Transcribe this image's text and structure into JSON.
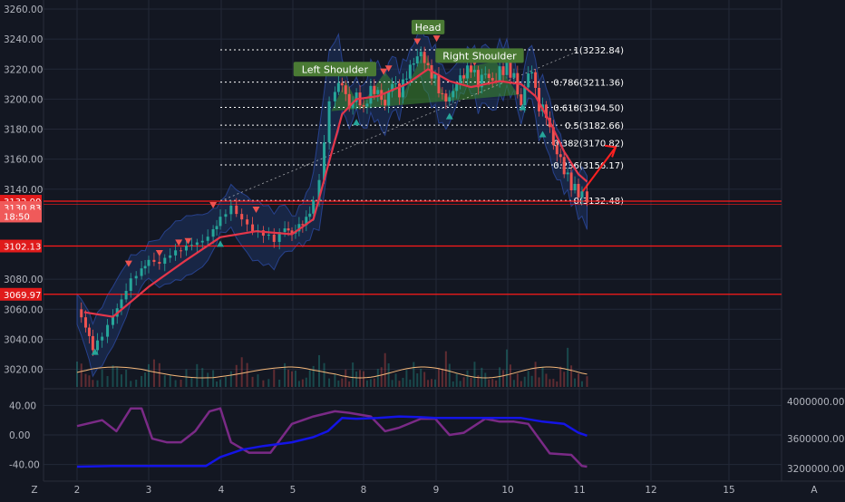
{
  "colors": {
    "background": "#131722",
    "grid": "#232838",
    "bull": "#26a69a",
    "bear": "#ef5350",
    "red_line": "#ff1a1a",
    "wma": "#e5364a",
    "band_fill": "#1e3a72",
    "pattern_fill": "#3c8a2e",
    "osc_purple": "#7a2a86",
    "osc_blue": "#1414e6",
    "volume_ma": "#f5b87a"
  },
  "chart_data": [
    {
      "type": "candlestick",
      "x_ticks": [
        "2",
        "3",
        "4",
        "5",
        "8",
        "9",
        "10",
        "11",
        "12",
        "15"
      ],
      "ylim": [
        3010,
        3265
      ],
      "y_ticks": [
        "3260.00",
        "3240.00",
        "3220.00",
        "3200.00",
        "3180.00",
        "3160.00",
        "3140.00",
        "3080.00",
        "3060.00",
        "3040.00",
        "3020.00"
      ],
      "price_labels": [
        {
          "text": "3132.00",
          "value": 3132.0
        },
        {
          "text": "3130.83",
          "value": 3130.83
        },
        {
          "text": "18:50",
          "value": 3124.5
        },
        {
          "text": "3102.13",
          "value": 3102.13
        },
        {
          "text": "3069.97",
          "value": 3069.97
        }
      ],
      "horizontal_levels": [
        3132.0,
        3102.13,
        3069.97
      ],
      "fibonacci": [
        {
          "label": "1(3232.84)",
          "value": 3232.84
        },
        {
          "label": "0.786(3211.36)",
          "value": 3211.36
        },
        {
          "label": "0.618(3194.50)",
          "value": 3194.5
        },
        {
          "label": "0.5(3182.66)",
          "value": 3182.66
        },
        {
          "label": "0.382(3170.82)",
          "value": 3170.82
        },
        {
          "label": "0.236(3156.17)",
          "value": 3156.17
        },
        {
          "label": "0(3132.48)",
          "value": 3132.48
        }
      ],
      "pattern_labels": [
        "Left Shoulder",
        "Head",
        "Right Shoulder"
      ],
      "price_path": [
        [
          0.0,
          3058
        ],
        [
          0.12,
          3048
        ],
        [
          0.22,
          3035
        ],
        [
          0.35,
          3045
        ],
        [
          0.5,
          3058
        ],
        [
          0.62,
          3068
        ],
        [
          0.75,
          3080
        ],
        [
          0.9,
          3085
        ],
        [
          1.0,
          3090
        ],
        [
          1.15,
          3088
        ],
        [
          1.3,
          3095
        ],
        [
          1.45,
          3100
        ],
        [
          1.6,
          3105
        ],
        [
          1.75,
          3108
        ],
        [
          1.9,
          3115
        ],
        [
          2.0,
          3122
        ],
        [
          2.15,
          3128
        ],
        [
          2.3,
          3118
        ],
        [
          2.45,
          3110
        ],
        [
          2.6,
          3108
        ],
        [
          2.75,
          3105
        ],
        [
          2.9,
          3115
        ],
        [
          3.0,
          3112
        ],
        [
          3.1,
          3118
        ],
        [
          3.2,
          3122
        ],
        [
          3.3,
          3132
        ],
        [
          3.38,
          3145
        ],
        [
          3.45,
          3170
        ],
        [
          3.52,
          3198
        ],
        [
          3.6,
          3205
        ],
        [
          3.7,
          3210
        ],
        [
          3.8,
          3195
        ],
        [
          3.9,
          3205
        ],
        [
          4.0,
          3195
        ],
        [
          4.1,
          3208
        ],
        [
          4.2,
          3205
        ],
        [
          4.3,
          3195
        ],
        [
          4.4,
          3210
        ],
        [
          4.5,
          3202
        ],
        [
          4.6,
          3215
        ],
        [
          4.7,
          3225
        ],
        [
          4.8,
          3232
        ],
        [
          4.9,
          3222
        ],
        [
          5.0,
          3215
        ],
        [
          5.1,
          3202
        ],
        [
          5.2,
          3200
        ],
        [
          5.3,
          3210
        ],
        [
          5.4,
          3215
        ],
        [
          5.5,
          3220
        ],
        [
          5.6,
          3210
        ],
        [
          5.7,
          3218
        ],
        [
          5.8,
          3212
        ],
        [
          5.9,
          3220
        ],
        [
          6.0,
          3222
        ],
        [
          6.1,
          3215
        ],
        [
          6.2,
          3195
        ],
        [
          6.3,
          3218
        ],
        [
          6.4,
          3210
        ],
        [
          6.45,
          3195
        ],
        [
          6.55,
          3190
        ],
        [
          6.65,
          3170
        ],
        [
          6.75,
          3160
        ],
        [
          6.85,
          3148
        ],
        [
          6.95,
          3140
        ],
        [
          7.05,
          3136
        ],
        [
          7.12,
          3131
        ]
      ],
      "wma_path": [
        [
          0.1,
          3058
        ],
        [
          0.5,
          3055
        ],
        [
          1.0,
          3075
        ],
        [
          1.5,
          3092
        ],
        [
          2.0,
          3108
        ],
        [
          2.5,
          3112
        ],
        [
          3.0,
          3110
        ],
        [
          3.3,
          3120
        ],
        [
          3.5,
          3155
        ],
        [
          3.7,
          3190
        ],
        [
          3.9,
          3200
        ],
        [
          4.2,
          3202
        ],
        [
          4.6,
          3210
        ],
        [
          4.9,
          3220
        ],
        [
          5.2,
          3212
        ],
        [
          5.5,
          3208
        ],
        [
          5.9,
          3212
        ],
        [
          6.2,
          3210
        ],
        [
          6.4,
          3202
        ],
        [
          6.6,
          3185
        ],
        [
          6.8,
          3165
        ],
        [
          7.0,
          3150
        ],
        [
          7.12,
          3145
        ]
      ],
      "markers": [
        {
          "type": "sell",
          "x": 0.72,
          "y": 3090
        },
        {
          "type": "buy",
          "x": 0.25,
          "y": 3032
        },
        {
          "type": "sell",
          "x": 1.15,
          "y": 3097
        },
        {
          "type": "sell",
          "x": 1.42,
          "y": 3104
        },
        {
          "type": "sell",
          "x": 1.55,
          "y": 3105
        },
        {
          "type": "sell",
          "x": 1.9,
          "y": 3129
        },
        {
          "type": "buy",
          "x": 2.0,
          "y": 3104
        },
        {
          "type": "sell",
          "x": 2.5,
          "y": 3126
        },
        {
          "type": "buy",
          "x": 3.9,
          "y": 3185
        },
        {
          "type": "sell",
          "x": 4.28,
          "y": 3218
        },
        {
          "type": "sell",
          "x": 4.35,
          "y": 3220
        },
        {
          "type": "sell",
          "x": 4.75,
          "y": 3238
        },
        {
          "type": "sell",
          "x": 5.02,
          "y": 3240
        },
        {
          "type": "buy",
          "x": 5.2,
          "y": 3189
        },
        {
          "type": "sell",
          "x": 5.55,
          "y": 3224
        },
        {
          "type": "sell",
          "x": 5.9,
          "y": 3228
        },
        {
          "type": "buy",
          "x": 6.22,
          "y": 3195
        },
        {
          "type": "buy",
          "x": 6.5,
          "y": 3177
        }
      ]
    },
    {
      "type": "line",
      "y_ticks": [
        "40.00",
        "0.00",
        "-40.00"
      ],
      "y2_ticks": [
        "4000000.00",
        "3600000.00",
        "3200000.00"
      ],
      "series": [
        {
          "values": [
            [
              0.0,
              12
            ],
            [
              0.35,
              20
            ],
            [
              0.55,
              5
            ],
            [
              0.75,
              36
            ],
            [
              0.9,
              36
            ],
            [
              1.05,
              -5
            ],
            [
              1.25,
              -10
            ],
            [
              1.45,
              -10
            ],
            [
              1.65,
              5
            ],
            [
              1.85,
              32
            ],
            [
              2.0,
              36
            ],
            [
              2.15,
              -10
            ],
            [
              2.4,
              -24
            ],
            [
              2.7,
              -24
            ],
            [
              3.0,
              15
            ],
            [
              3.3,
              25
            ],
            [
              3.6,
              32
            ],
            [
              3.8,
              30
            ],
            [
              4.1,
              25
            ],
            [
              4.3,
              5
            ],
            [
              4.5,
              10
            ],
            [
              4.8,
              22
            ],
            [
              5.0,
              22
            ],
            [
              5.2,
              0
            ],
            [
              5.4,
              3
            ],
            [
              5.7,
              22
            ],
            [
              5.9,
              18
            ],
            [
              6.1,
              18
            ],
            [
              6.3,
              15
            ],
            [
              6.6,
              -25
            ],
            [
              6.9,
              -27
            ],
            [
              7.05,
              -42
            ],
            [
              7.12,
              -43
            ]
          ]
        },
        {
          "values": [
            [
              0.0,
              -43
            ],
            [
              0.5,
              -42
            ],
            [
              1.0,
              -42
            ],
            [
              1.5,
              -42
            ],
            [
              1.8,
              -42
            ],
            [
              2.0,
              -30
            ],
            [
              2.3,
              -20
            ],
            [
              2.6,
              -15
            ],
            [
              3.0,
              -10
            ],
            [
              3.3,
              -3
            ],
            [
              3.5,
              5
            ],
            [
              3.7,
              23
            ],
            [
              3.9,
              22
            ],
            [
              4.2,
              23
            ],
            [
              4.5,
              25
            ],
            [
              4.8,
              24
            ],
            [
              5.0,
              23
            ],
            [
              5.4,
              23
            ],
            [
              5.8,
              23
            ],
            [
              6.2,
              23
            ],
            [
              6.5,
              18
            ],
            [
              6.8,
              15
            ],
            [
              7.0,
              3
            ],
            [
              7.12,
              -1
            ]
          ]
        }
      ]
    }
  ],
  "bottom_axis": {
    "left_icon": "Z",
    "right_icon": "A"
  }
}
